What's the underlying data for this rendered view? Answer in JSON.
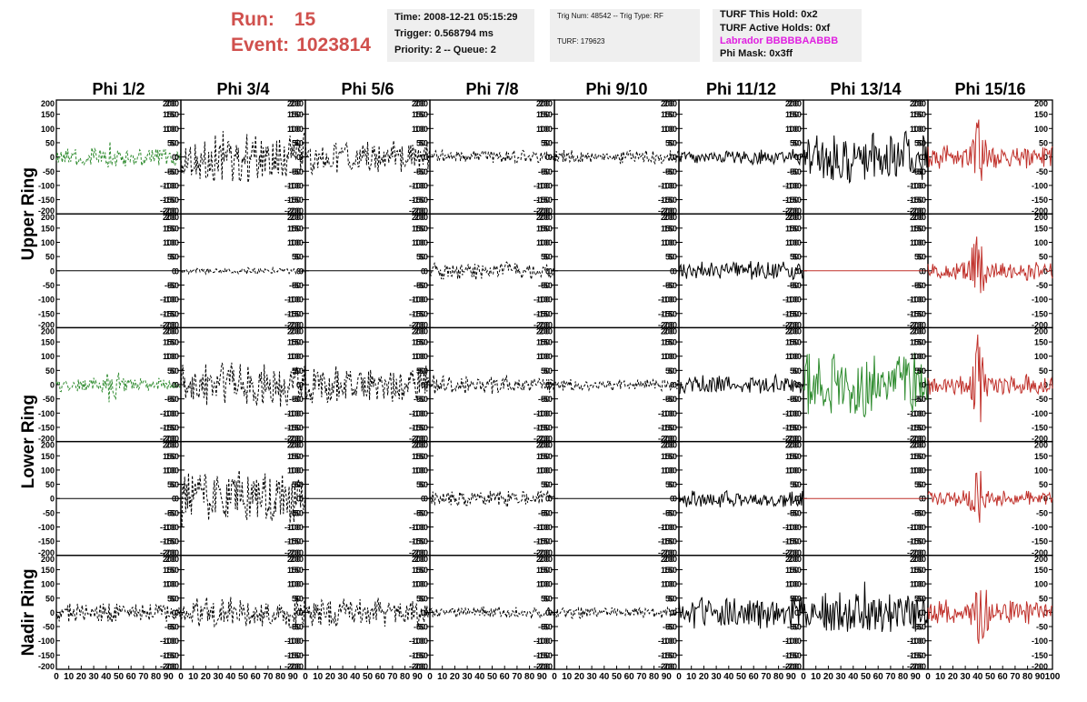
{
  "header": {
    "run_label": "Run:",
    "run_value": "15",
    "event_label": "Event:",
    "event_value": "1023814",
    "time_box": {
      "time": "Time: 2008-12-21 05:15:29",
      "trigger": "Trigger: 0.568794 ms",
      "priority": "Priority: 2 -- Queue: 2"
    },
    "trig_box": {
      "trig": "Trig Num: 48542 -- Trig Type: RF",
      "turf": "TURF: 179623"
    },
    "turf_box": {
      "this_hold": "TURF This Hold: 0x2",
      "active_holds": "TURF Active Holds: 0xf",
      "labrador": "Labrador BBBBBAABBB",
      "phi_mask": "Phi Mask: 0x3ff"
    },
    "colors": {
      "run_event": "#d0504d",
      "labrador": "#e020e0"
    }
  },
  "chart_data": {
    "type": "line",
    "title": "",
    "columns": [
      "Phi 1/2",
      "Phi 3/4",
      "Phi 5/6",
      "Phi 7/8",
      "Phi 9/10",
      "Phi 11/12",
      "Phi 13/14",
      "Phi 15/16"
    ],
    "ring_labels": [
      {
        "label": "Upper Ring",
        "rows": [
          0,
          1
        ]
      },
      {
        "label": "Lower Ring",
        "rows": [
          2,
          3
        ]
      },
      {
        "label": "Nadir Ring",
        "rows": [
          4
        ]
      }
    ],
    "ylim": [
      -200,
      200
    ],
    "xlim": [
      0,
      100
    ],
    "y_ticks": [
      -200,
      -150,
      -100,
      -50,
      0,
      50,
      100,
      150,
      200
    ],
    "x_tick_labels": [
      "0",
      "10",
      "20",
      "30",
      "40",
      "50",
      "60",
      "70",
      "80",
      "90",
      "100"
    ],
    "colors": {
      "green": "#2e8b2e",
      "black": "#000000",
      "red": "#c0302a"
    },
    "grid": false,
    "legend": "none",
    "panels": [
      [
        {
          "color": "green",
          "dashed": true,
          "amplitude": 35,
          "burst_center": 45,
          "burst_amp": 25
        },
        {
          "color": "black",
          "dashed": true,
          "amplitude": 95,
          "burst_center": 0,
          "burst_amp": 0
        },
        {
          "color": "black",
          "dashed": true,
          "amplitude": 60,
          "burst_center": 0,
          "burst_amp": 0
        },
        {
          "color": "black",
          "dashed": true,
          "amplitude": 25,
          "burst_center": 0,
          "burst_amp": 0
        },
        {
          "color": "black",
          "dashed": true,
          "amplitude": 25,
          "burst_center": 0,
          "burst_amp": 0
        },
        {
          "color": "black",
          "dashed": false,
          "amplitude": 30,
          "burst_center": 0,
          "burst_amp": 0
        },
        {
          "color": "black",
          "dashed": false,
          "amplitude": 95,
          "burst_center": 0,
          "burst_amp": 0
        },
        {
          "color": "red",
          "dashed": false,
          "amplitude": 45,
          "burst_center": 40,
          "burst_amp": 100
        }
      ],
      [
        {
          "color": "black",
          "dashed": false,
          "amplitude": 0,
          "burst_center": 0,
          "burst_amp": 0
        },
        {
          "color": "black",
          "dashed": true,
          "amplitude": 12,
          "burst_center": 0,
          "burst_amp": 0
        },
        {
          "color": "black",
          "dashed": false,
          "amplitude": 0,
          "burst_center": 0,
          "burst_amp": 0
        },
        {
          "color": "black",
          "dashed": true,
          "amplitude": 35,
          "burst_center": 0,
          "burst_amp": 0
        },
        {
          "color": "black",
          "dashed": false,
          "amplitude": 0,
          "burst_center": 0,
          "burst_amp": 0
        },
        {
          "color": "black",
          "dashed": false,
          "amplitude": 35,
          "burst_center": 0,
          "burst_amp": 0
        },
        {
          "color": "red",
          "dashed": false,
          "amplitude": 0,
          "burst_center": 0,
          "burst_amp": 0
        },
        {
          "color": "red",
          "dashed": false,
          "amplitude": 35,
          "burst_center": 40,
          "burst_amp": 120
        }
      ],
      [
        {
          "color": "green",
          "dashed": true,
          "amplitude": 25,
          "burst_center": 45,
          "burst_amp": 60
        },
        {
          "color": "black",
          "dashed": true,
          "amplitude": 80,
          "burst_center": 0,
          "burst_amp": 0
        },
        {
          "color": "black",
          "dashed": true,
          "amplitude": 70,
          "burst_center": 0,
          "burst_amp": 0
        },
        {
          "color": "black",
          "dashed": true,
          "amplitude": 35,
          "burst_center": 0,
          "burst_amp": 0
        },
        {
          "color": "black",
          "dashed": true,
          "amplitude": 22,
          "burst_center": 0,
          "burst_amp": 0
        },
        {
          "color": "black",
          "dashed": false,
          "amplitude": 35,
          "burst_center": 0,
          "burst_amp": 0
        },
        {
          "color": "green",
          "dashed": false,
          "amplitude": 120,
          "burst_center": 0,
          "burst_amp": 0
        },
        {
          "color": "red",
          "dashed": false,
          "amplitude": 40,
          "burst_center": 40,
          "burst_amp": 140
        }
      ],
      [
        {
          "color": "black",
          "dashed": false,
          "amplitude": 0,
          "burst_center": 0,
          "burst_amp": 0
        },
        {
          "color": "black",
          "dashed": true,
          "amplitude": 110,
          "burst_center": 0,
          "burst_amp": 0
        },
        {
          "color": "black",
          "dashed": false,
          "amplitude": 0,
          "burst_center": 0,
          "burst_amp": 0
        },
        {
          "color": "black",
          "dashed": true,
          "amplitude": 30,
          "burst_center": 0,
          "burst_amp": 0
        },
        {
          "color": "black",
          "dashed": false,
          "amplitude": 0,
          "burst_center": 0,
          "burst_amp": 0
        },
        {
          "color": "black",
          "dashed": false,
          "amplitude": 35,
          "burst_center": 0,
          "burst_amp": 0
        },
        {
          "color": "red",
          "dashed": false,
          "amplitude": 0,
          "burst_center": 0,
          "burst_amp": 0
        },
        {
          "color": "red",
          "dashed": false,
          "amplitude": 30,
          "burst_center": 40,
          "burst_amp": 110
        }
      ],
      [
        {
          "color": "black",
          "dashed": true,
          "amplitude": 35,
          "burst_center": 40,
          "burst_amp": 25
        },
        {
          "color": "black",
          "dashed": true,
          "amplitude": 55,
          "burst_center": 0,
          "burst_amp": 0
        },
        {
          "color": "black",
          "dashed": true,
          "amplitude": 55,
          "burst_center": 0,
          "burst_amp": 0
        },
        {
          "color": "black",
          "dashed": true,
          "amplitude": 22,
          "burst_center": 0,
          "burst_amp": 0
        },
        {
          "color": "black",
          "dashed": true,
          "amplitude": 22,
          "burst_center": 0,
          "burst_amp": 0
        },
        {
          "color": "black",
          "dashed": false,
          "amplitude": 60,
          "burst_center": 0,
          "burst_amp": 0
        },
        {
          "color": "black",
          "dashed": false,
          "amplitude": 75,
          "burst_center": 50,
          "burst_amp": 40
        },
        {
          "color": "red",
          "dashed": false,
          "amplitude": 45,
          "burst_center": 42,
          "burst_amp": 100
        }
      ]
    ]
  }
}
